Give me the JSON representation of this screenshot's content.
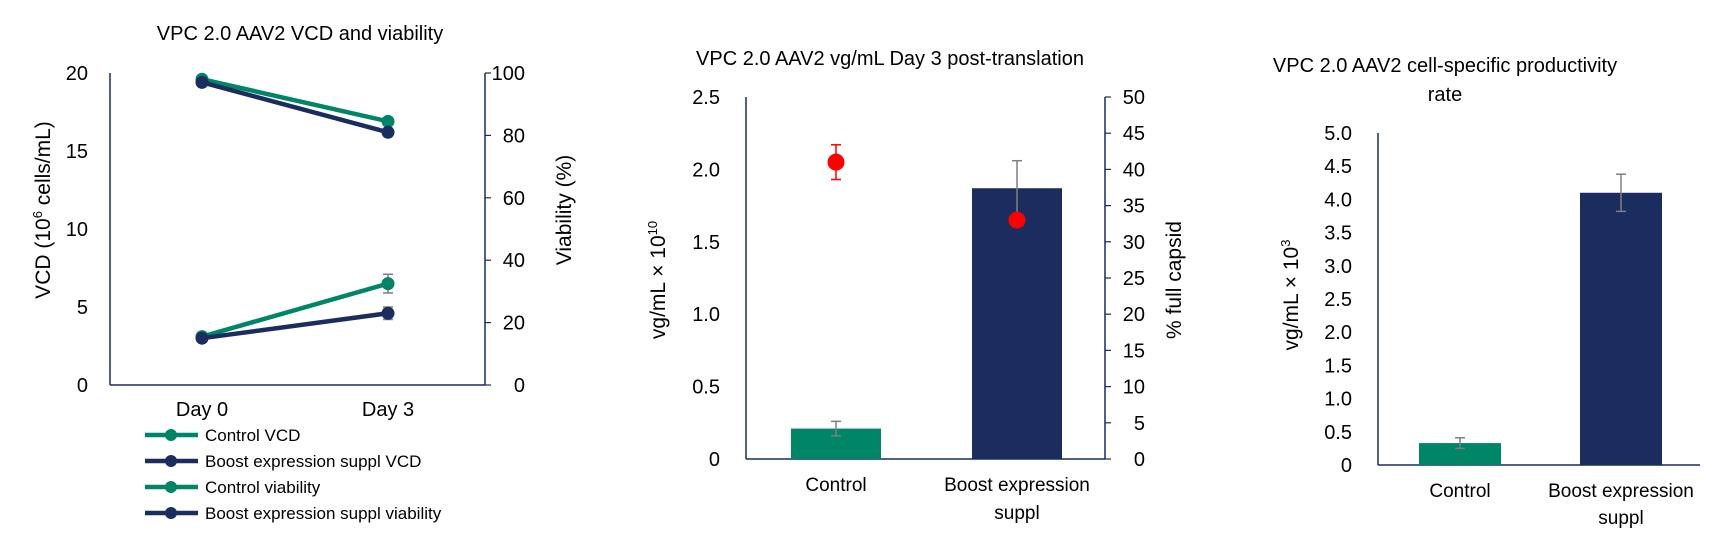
{
  "colors": {
    "green": "#008566",
    "navy": "#1b2d5e",
    "red": "#ff0000",
    "axis": "#1b2d5e",
    "errbar": "#7f7f7f"
  },
  "chart_data": [
    {
      "type": "line",
      "title": "VPC 2.0 AAV2 VCD and viability",
      "x": [
        "Day 0",
        "Day 3"
      ],
      "ylabel_left": {
        "pre": "VCD (10",
        "sup": "6",
        "post": " cells/mL)"
      },
      "ylabel_right": "Viability (%)",
      "ylim_left": [
        0,
        20
      ],
      "ylim_right": [
        0,
        100
      ],
      "yticks_left": [
        "0",
        "5",
        "10",
        "15",
        "20"
      ],
      "yticks_right": [
        "0",
        "20",
        "40",
        "60",
        "80",
        "100"
      ],
      "legend_position": "bottom-left",
      "series": [
        {
          "name": "Control VCD",
          "axis": "left",
          "color": "#008566",
          "values": [
            3.1,
            6.5
          ],
          "err": [
            0.1,
            0.6
          ]
        },
        {
          "name": "Boost expression suppl VCD",
          "axis": "left",
          "color": "#1b2d5e",
          "values": [
            3.0,
            4.6
          ],
          "err": [
            0.1,
            0.4
          ]
        },
        {
          "name": "Control viability",
          "axis": "right",
          "color": "#008566",
          "values": [
            98,
            84.5
          ],
          "err": [
            0.5,
            1
          ]
        },
        {
          "name": "Boost expression suppl viability",
          "axis": "right",
          "color": "#1b2d5e",
          "values": [
            97,
            81
          ],
          "err": [
            0.5,
            1
          ]
        }
      ]
    },
    {
      "type": "bar",
      "title": "VPC 2.0 AAV2 vg/mL Day 3 post-translation",
      "categories": [
        "Control",
        "Boost expression suppl"
      ],
      "category_lines": [
        [
          "Control"
        ],
        [
          "Boost expression",
          "suppl"
        ]
      ],
      "ylabel_left": {
        "pre": "vg/mL × 10",
        "sup": "10",
        "post": ""
      },
      "ylabel_right": "% full capsid",
      "ylim_left": [
        0,
        2.5
      ],
      "ylim_right": [
        0,
        50
      ],
      "yticks_left": [
        "0",
        "0.5",
        "1.0",
        "1.5",
        "2.0",
        "2.5"
      ],
      "yticks_right": [
        "0",
        "5",
        "10",
        "15",
        "20",
        "25",
        "30",
        "35",
        "40",
        "45",
        "50"
      ],
      "bars": {
        "values": [
          0.21,
          1.87
        ],
        "err": [
          0.05,
          0.19
        ],
        "colors": [
          "#008566",
          "#1b2d5e"
        ]
      },
      "points": {
        "values": [
          41,
          33
        ],
        "err": [
          2.4,
          0
        ],
        "color": "#ff0000"
      }
    },
    {
      "type": "bar",
      "title_lines": [
        "VPC 2.0 AAV2 cell-specific productivity",
        "rate"
      ],
      "categories": [
        "Control",
        "Boost expression suppl"
      ],
      "category_lines": [
        [
          "Control"
        ],
        [
          "Boost expression",
          "suppl"
        ]
      ],
      "ylabel_left": {
        "pre": "vg/mL × 10",
        "sup": "3",
        "post": ""
      },
      "ylim_left": [
        0,
        5.0
      ],
      "yticks_left": [
        "0",
        "0.5",
        "1.0",
        "1.5",
        "2.0",
        "2.5",
        "3.0",
        "3.5",
        "4.0",
        "4.5",
        "5.0"
      ],
      "bars": {
        "values": [
          0.33,
          4.1
        ],
        "err": [
          0.08,
          0.28
        ],
        "colors": [
          "#008566",
          "#1b2d5e"
        ]
      }
    }
  ]
}
